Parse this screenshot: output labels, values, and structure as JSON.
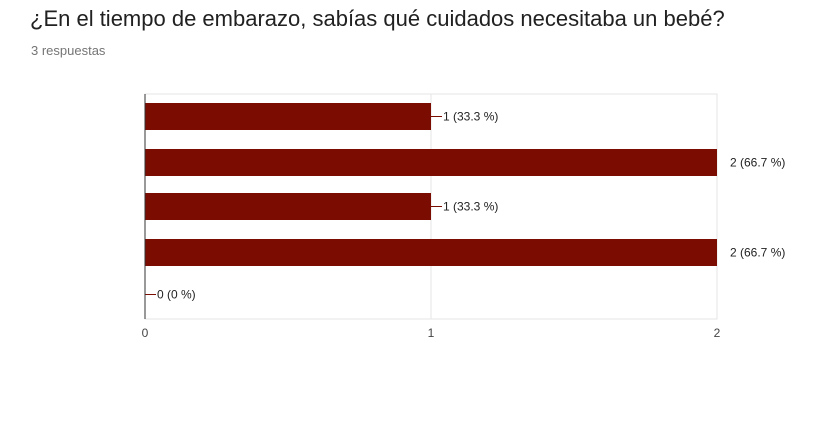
{
  "question": {
    "title": "¿En el tiempo de embarazo, sabías qué cuidados necesitaba un bebé?",
    "responses": "3 respuestas"
  },
  "colors": {
    "bar": "#7b0c02",
    "leader": "#7b0c02",
    "grid": "#e6e6e6",
    "axis": "#333333"
  },
  "chart_data": {
    "type": "bar",
    "orientation": "horizontal",
    "categories": [
      "",
      "",
      "",
      "",
      ""
    ],
    "values": [
      1,
      2,
      1,
      2,
      0
    ],
    "data_labels": [
      "1 (33.3 %)",
      "2 (66.7 %)",
      "1 (33.3 %)",
      "2 (66.7 %)",
      "0 (0 %)"
    ],
    "xticks": [
      "0",
      "1",
      "2"
    ],
    "xlim": [
      0,
      2
    ],
    "title": "",
    "xlabel": "",
    "ylabel": "",
    "grid": true
  }
}
